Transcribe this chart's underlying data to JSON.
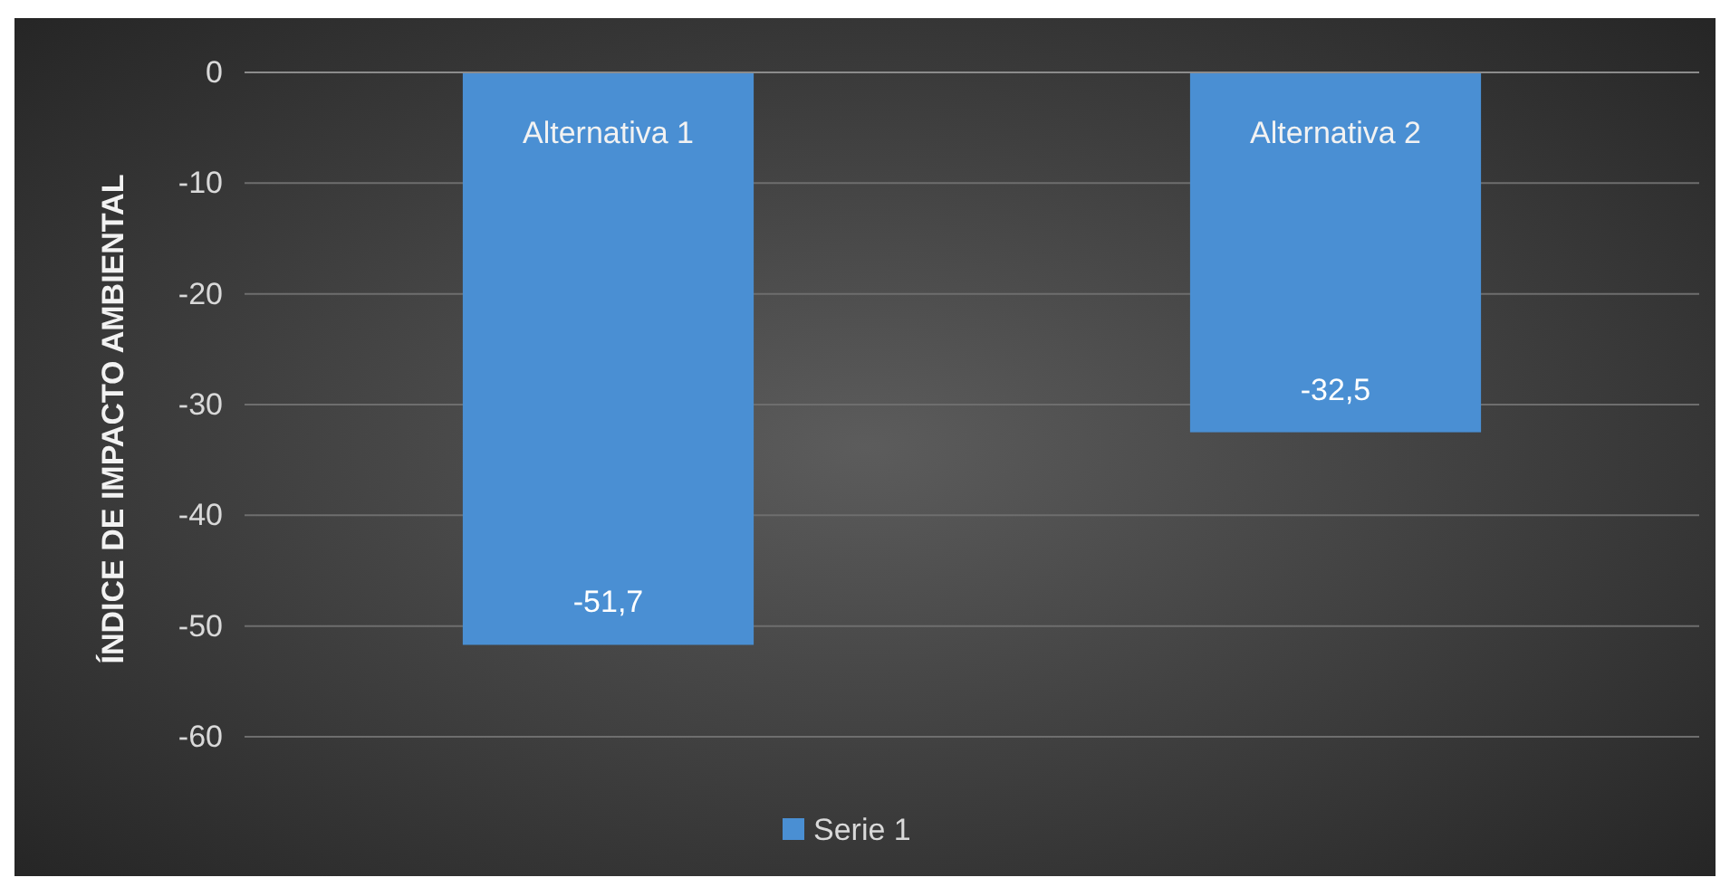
{
  "chart_data": {
    "type": "bar",
    "ylabel": "ÍNDICE DE IMPACTO AMBIENTAL",
    "categories": [
      "Alternativa 1",
      "Alternativa 2"
    ],
    "series": [
      {
        "name": "Serie 1",
        "color": "#4a8fd3",
        "values": [
          -51.7,
          -32.5
        ],
        "value_labels": [
          "-51,7",
          "-32,5"
        ]
      }
    ],
    "ylim": [
      -60,
      0
    ],
    "yticks": [
      0,
      -10,
      -20,
      -30,
      -40,
      -50,
      -60
    ],
    "grid": "y",
    "legend": "bottom"
  }
}
